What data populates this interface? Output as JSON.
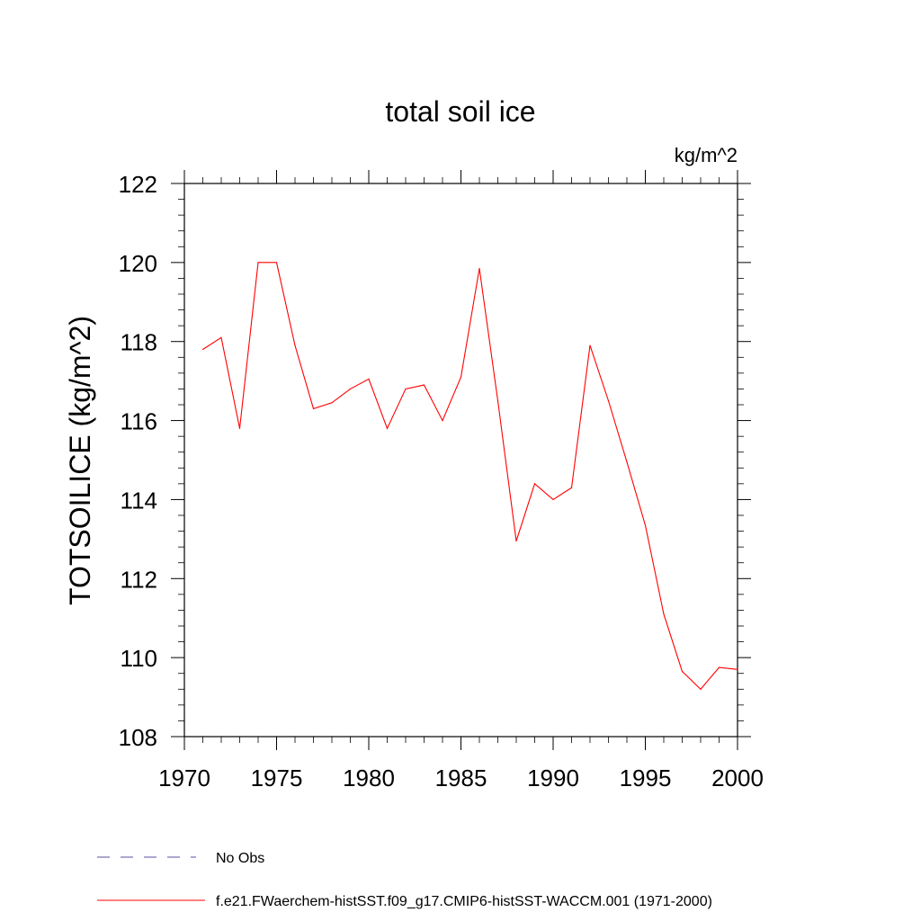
{
  "chart_data": {
    "type": "line",
    "title": "total soil ice",
    "units_label": "kg/m^2",
    "ylabel": "TOTSOILICE  (kg/m^2)",
    "xlabel": "",
    "xlim": [
      1970,
      2000
    ],
    "ylim": [
      108,
      122
    ],
    "x_ticks": [
      1970,
      1975,
      1980,
      1985,
      1990,
      1995,
      2000
    ],
    "y_ticks": [
      108,
      110,
      112,
      114,
      116,
      118,
      120,
      122
    ],
    "x_tick_labels": [
      "1970",
      "1975",
      "1980",
      "1985",
      "1990",
      "1995",
      "2000"
    ],
    "y_tick_labels": [
      "108",
      "110",
      "112",
      "114",
      "116",
      "118",
      "120",
      "122"
    ],
    "grid": false,
    "legend_position": "bottom",
    "series": [
      {
        "name": "f.e21.FWaerchem-histSST.f09_g17.CMIP6-histSST-WACCM.001 (1971-2000)",
        "color": "#ff0000",
        "line_style": "solid",
        "x": [
          1971,
          1972,
          1973,
          1974,
          1975,
          1976,
          1977,
          1978,
          1979,
          1980,
          1981,
          1982,
          1983,
          1984,
          1985,
          1986,
          1987,
          1988,
          1989,
          1990,
          1991,
          1992,
          1993,
          1994,
          1995,
          1996,
          1997,
          1998,
          1999,
          2000
        ],
        "y": [
          117.8,
          118.1,
          115.8,
          120.0,
          120.0,
          117.9,
          116.3,
          116.45,
          116.8,
          117.05,
          115.8,
          116.8,
          116.9,
          116.0,
          117.1,
          119.85,
          116.5,
          112.95,
          114.4,
          114.0,
          114.3,
          117.9,
          116.5,
          114.95,
          113.35,
          111.1,
          109.65,
          109.2,
          109.75,
          109.7
        ]
      },
      {
        "name": "No Obs",
        "color": "#5a4fa0",
        "line_style": "dashed",
        "x": [],
        "y": []
      }
    ]
  }
}
